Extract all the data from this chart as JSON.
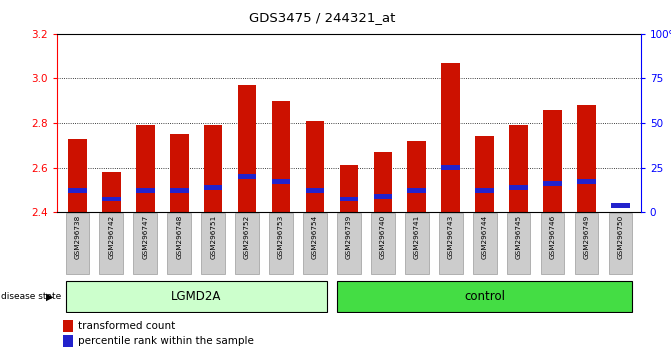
{
  "title": "GDS3475 / 244321_at",
  "samples": [
    "GSM296738",
    "GSM296742",
    "GSM296747",
    "GSM296748",
    "GSM296751",
    "GSM296752",
    "GSM296753",
    "GSM296754",
    "GSM296739",
    "GSM296740",
    "GSM296741",
    "GSM296743",
    "GSM296744",
    "GSM296745",
    "GSM296746",
    "GSM296749",
    "GSM296750"
  ],
  "red_values": [
    2.73,
    2.58,
    2.79,
    2.75,
    2.79,
    2.97,
    2.9,
    2.81,
    2.61,
    2.67,
    2.72,
    3.07,
    2.74,
    2.79,
    2.86,
    2.88,
    2.4
  ],
  "blue_values": [
    2.5,
    2.46,
    2.5,
    2.5,
    2.51,
    2.56,
    2.54,
    2.5,
    2.46,
    2.47,
    2.5,
    2.6,
    2.5,
    2.51,
    2.53,
    2.54,
    2.43
  ],
  "y_min": 2.4,
  "y_max": 3.2,
  "y_ticks_left": [
    2.4,
    2.6,
    2.8,
    3.0,
    3.2
  ],
  "y_ticks_right": [
    0,
    25,
    50,
    75,
    100
  ],
  "bar_color": "#cc1100",
  "blue_color": "#2222cc",
  "group1_label": "LGMD2A",
  "group2_label": "control",
  "group1_indices": [
    0,
    1,
    2,
    3,
    4,
    5,
    6,
    7
  ],
  "group2_indices": [
    8,
    9,
    10,
    11,
    12,
    13,
    14,
    15,
    16
  ],
  "legend_red": "transformed count",
  "legend_blue": "percentile rank within the sample",
  "disease_state_label": "disease state",
  "group1_color": "#ccffcc",
  "group2_color": "#44dd44",
  "tick_label_bg": "#cccccc",
  "bar_width": 0.55
}
